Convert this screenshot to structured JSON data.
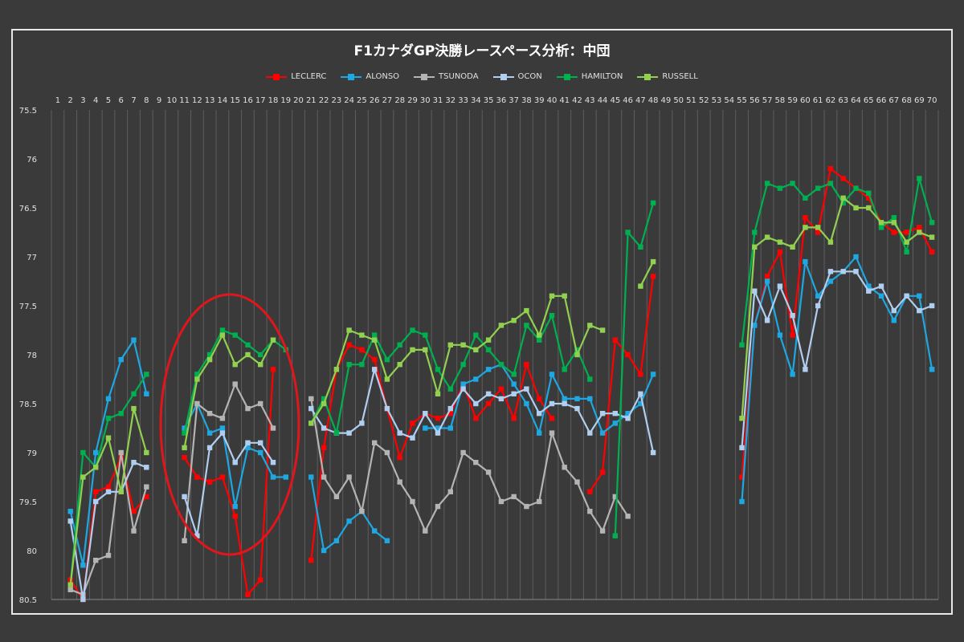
{
  "chart_data": {
    "type": "line",
    "title": "F1カナダGP決勝レースペース分析：中団",
    "xlabel": "",
    "ylabel": "",
    "x_ticks": [
      1,
      2,
      3,
      4,
      5,
      6,
      7,
      8,
      9,
      10,
      11,
      12,
      13,
      14,
      15,
      16,
      17,
      18,
      19,
      20,
      21,
      22,
      23,
      24,
      25,
      26,
      27,
      28,
      29,
      30,
      31,
      32,
      33,
      34,
      35,
      36,
      37,
      38,
      39,
      40,
      41,
      42,
      43,
      44,
      45,
      46,
      47,
      48,
      49,
      50,
      51,
      52,
      53,
      54,
      55,
      56,
      57,
      58,
      59,
      60,
      61,
      62,
      63,
      64,
      65,
      66,
      67,
      68,
      69,
      70
    ],
    "y_ticks": [
      "75.5",
      "76",
      "76.5",
      "77",
      "77.5",
      "78",
      "78.5",
      "79",
      "79.5",
      "80",
      "80.5"
    ],
    "ylim": [
      75.5,
      80.5
    ],
    "y_reversed": true,
    "grid": "vertical",
    "legend_position": "top",
    "series": [
      {
        "name": "LECLERC",
        "color": "#ff0000",
        "values": [
          null,
          80.3,
          80.5,
          79.4,
          79.35,
          79.05,
          79.6,
          79.45,
          null,
          null,
          79.05,
          79.25,
          79.3,
          79.25,
          79.65,
          80.45,
          80.3,
          78.15,
          null,
          null,
          80.1,
          78.95,
          78.15,
          77.9,
          77.95,
          78.05,
          78.55,
          79.05,
          78.7,
          78.6,
          78.65,
          78.6,
          78.3,
          78.65,
          78.5,
          78.35,
          78.65,
          78.1,
          78.45,
          78.65,
          null,
          null,
          79.4,
          79.2,
          77.85,
          78.0,
          78.2,
          77.2,
          null,
          null,
          null,
          null,
          null,
          null,
          79.25,
          77.7,
          77.2,
          76.95,
          77.8,
          76.6,
          76.75,
          76.1,
          76.2,
          76.3,
          76.4,
          76.65,
          76.75,
          76.75,
          76.7,
          76.95
        ]
      },
      {
        "name": "ALONSO",
        "color": "#1ea7e1",
        "values": [
          null,
          79.6,
          80.15,
          79.0,
          78.45,
          78.05,
          77.85,
          78.4,
          null,
          null,
          78.75,
          78.5,
          78.8,
          78.75,
          79.55,
          78.95,
          79.0,
          79.25,
          79.25,
          null,
          79.25,
          80.0,
          79.9,
          79.7,
          79.6,
          79.8,
          79.9,
          null,
          null,
          78.75,
          78.75,
          78.75,
          78.3,
          78.25,
          78.15,
          78.1,
          78.3,
          78.5,
          78.8,
          78.2,
          78.45,
          78.45,
          78.45,
          78.8,
          78.7,
          78.6,
          78.5,
          78.2,
          null,
          null,
          null,
          null,
          null,
          null,
          79.5,
          77.7,
          77.25,
          77.8,
          78.2,
          77.05,
          77.4,
          77.25,
          77.15,
          77.0,
          77.3,
          77.4,
          77.65,
          77.4,
          77.4,
          78.15
        ]
      },
      {
        "name": "TSUNODA",
        "color": "#b4b4b4",
        "values": [
          null,
          80.4,
          80.45,
          80.1,
          80.05,
          79.0,
          79.8,
          79.35,
          null,
          null,
          79.9,
          78.5,
          78.6,
          78.65,
          78.3,
          78.55,
          78.5,
          78.75,
          null,
          null,
          78.45,
          79.25,
          79.45,
          79.25,
          79.6,
          78.9,
          79.0,
          79.3,
          79.5,
          79.8,
          79.55,
          79.4,
          79.0,
          79.1,
          79.2,
          79.5,
          79.45,
          79.55,
          79.5,
          78.8,
          79.15,
          79.3,
          79.6,
          79.8,
          79.45,
          79.65,
          null,
          null,
          null,
          null,
          null,
          null,
          null,
          null,
          null,
          null,
          null,
          null,
          null,
          null,
          null,
          null,
          null,
          null,
          null,
          null,
          null,
          null,
          null,
          null
        ]
      },
      {
        "name": "OCON",
        "color": "#b0cef0",
        "values": [
          null,
          79.7,
          80.5,
          79.5,
          79.4,
          79.4,
          79.1,
          79.15,
          null,
          null,
          79.45,
          79.85,
          78.95,
          78.8,
          79.1,
          78.9,
          78.9,
          79.1,
          null,
          null,
          78.55,
          78.75,
          78.8,
          78.8,
          78.7,
          78.15,
          78.55,
          78.8,
          78.85,
          78.6,
          78.8,
          78.55,
          78.35,
          78.5,
          78.4,
          78.45,
          78.4,
          78.35,
          78.6,
          78.5,
          78.5,
          78.55,
          78.8,
          78.6,
          78.6,
          78.65,
          78.4,
          79.0,
          null,
          null,
          null,
          null,
          null,
          null,
          78.95,
          77.35,
          77.65,
          77.3,
          77.6,
          78.15,
          77.5,
          77.15,
          77.15,
          77.15,
          77.35,
          77.3,
          77.55,
          77.4,
          77.55,
          77.5
        ]
      },
      {
        "name": "HAMILTON",
        "color": "#00b050",
        "values": [
          null,
          80.35,
          79.0,
          79.15,
          78.65,
          78.6,
          78.4,
          78.2,
          null,
          null,
          78.8,
          78.2,
          78.0,
          77.75,
          77.8,
          77.9,
          78.0,
          77.85,
          77.95,
          null,
          78.7,
          78.45,
          78.8,
          78.1,
          78.1,
          77.8,
          78.05,
          77.9,
          77.75,
          77.8,
          78.15,
          78.35,
          78.1,
          77.8,
          77.95,
          78.1,
          78.2,
          77.7,
          77.85,
          77.6,
          78.15,
          77.95,
          78.25,
          null,
          79.85,
          76.75,
          76.9,
          76.45,
          null,
          null,
          null,
          null,
          null,
          null,
          77.9,
          76.75,
          76.25,
          76.3,
          76.25,
          76.4,
          76.3,
          76.25,
          76.45,
          76.3,
          76.35,
          76.7,
          76.6,
          76.95,
          76.2,
          76.65
        ]
      },
      {
        "name": "RUSSELL",
        "color": "#92d050",
        "values": [
          null,
          80.35,
          79.25,
          79.15,
          78.85,
          79.4,
          78.55,
          79.0,
          null,
          null,
          78.95,
          78.25,
          78.05,
          77.8,
          78.1,
          78.0,
          78.1,
          77.85,
          null,
          null,
          78.7,
          78.5,
          78.15,
          77.75,
          77.8,
          77.85,
          78.25,
          78.1,
          77.95,
          77.95,
          78.4,
          77.9,
          77.9,
          77.95,
          77.85,
          77.7,
          77.65,
          77.55,
          77.8,
          77.4,
          77.4,
          78.0,
          77.7,
          77.75,
          null,
          null,
          77.3,
          77.05,
          null,
          null,
          null,
          null,
          null,
          null,
          78.65,
          76.9,
          76.8,
          76.85,
          76.9,
          76.7,
          76.7,
          76.85,
          76.4,
          76.5,
          76.5,
          76.65,
          76.65,
          76.85,
          76.75,
          76.8
        ]
      }
    ]
  }
}
